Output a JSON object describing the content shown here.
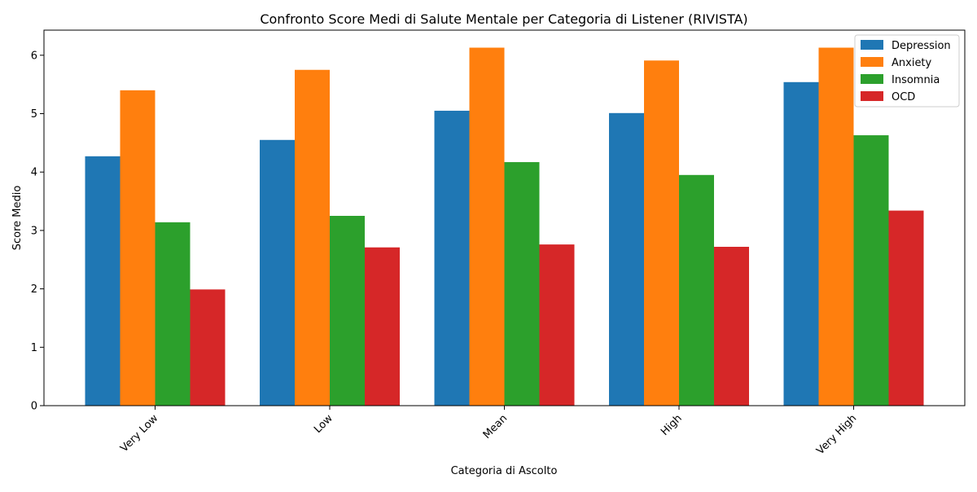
{
  "chart_data": {
    "type": "bar",
    "title": "Confronto Score Medi di Salute Mentale per Categoria di Listener (RIVISTA)",
    "xlabel": "Categoria di Ascolto",
    "ylabel": "Score Medio",
    "categories": [
      "Very Low",
      "Low",
      "Mean",
      "High",
      "Very High"
    ],
    "ylim": [
      0,
      6.43
    ],
    "yticks": [
      0,
      1,
      2,
      3,
      4,
      5,
      6
    ],
    "grid": false,
    "legend_position": "top-right",
    "series": [
      {
        "name": "Depression",
        "color": "#1f77b4",
        "values": [
          4.27,
          4.55,
          5.05,
          5.01,
          5.54
        ]
      },
      {
        "name": "Anxiety",
        "color": "#ff7f0e",
        "values": [
          5.4,
          5.75,
          6.13,
          5.91,
          6.13
        ]
      },
      {
        "name": "Insomnia",
        "color": "#2ca02c",
        "values": [
          3.14,
          3.25,
          4.17,
          3.95,
          4.63
        ]
      },
      {
        "name": "OCD",
        "color": "#d62728",
        "values": [
          1.99,
          2.71,
          2.76,
          2.72,
          3.34
        ]
      }
    ]
  }
}
